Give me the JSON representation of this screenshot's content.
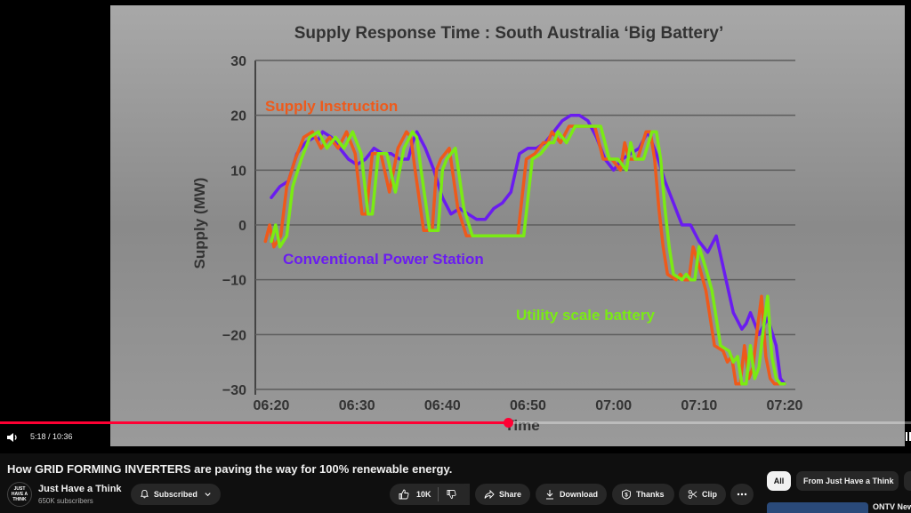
{
  "chart_data": {
    "type": "line",
    "title": "Supply Response Time : South Australia ‘Big Battery’",
    "xlabel": "Time",
    "ylabel": "Supply (MW)",
    "ylim": [
      -30,
      30
    ],
    "yticks": [
      "30",
      "20",
      "10",
      "0",
      "−10",
      "−20",
      "−30"
    ],
    "xticks": [
      "06:20",
      "06:30",
      "06:40",
      "06:50",
      "07:00",
      "07:10",
      "07:20"
    ],
    "grid": true,
    "colors": {
      "background": "#8e8e8e",
      "grid": "#5c5c5c",
      "text": "#333333"
    },
    "series": [
      {
        "name": "Supply Instruction",
        "color": "#ee5a1b",
        "width": 3.5,
        "x": [
          0,
          0.5,
          1,
          1.8,
          2.5,
          3.5,
          4.5,
          5.5,
          6.5,
          7.5,
          8.5,
          9.5,
          10.5,
          11.3,
          11.8,
          12.5,
          13.5,
          14.5,
          15.5,
          16.5,
          17,
          17.5,
          18.5,
          19.5,
          20,
          20.5,
          21.5,
          22.5,
          23.5,
          24.5,
          25.5,
          26.5,
          27,
          27.5,
          28.5,
          29.5,
          30.5,
          31.5,
          32.5,
          33,
          33.5,
          34.5,
          35.5,
          36.5,
          37.5,
          38.5,
          39.5,
          40.5,
          41.5,
          42,
          42.5,
          43.5,
          44.5,
          45,
          45.5,
          46,
          46.5,
          47,
          48,
          48.5,
          49,
          49.5,
          50,
          50.8,
          51.5,
          52.5,
          53.5,
          54,
          54.5,
          55,
          55.5,
          56,
          56.5,
          57,
          57.5,
          58,
          58.5,
          59,
          59.5,
          60
        ],
        "y": [
          -3,
          0,
          -4,
          -2,
          7,
          12,
          16,
          17,
          14,
          16,
          14,
          17,
          13,
          2,
          2,
          13,
          13,
          6,
          14,
          17,
          16,
          10,
          -1,
          -1,
          10,
          12,
          14,
          3,
          -2,
          -2,
          -2,
          -2,
          -2,
          -2,
          -2,
          -2,
          12,
          13,
          15,
          15,
          17,
          15,
          18,
          18,
          18,
          18,
          12,
          12,
          10,
          15,
          12,
          12,
          17,
          17,
          12,
          3,
          -4,
          -9,
          -10,
          -9,
          -10,
          -10,
          -4,
          -8,
          -12,
          -22,
          -23,
          -25,
          -24,
          -29,
          -29,
          -22,
          -28,
          -26,
          -19,
          -13,
          -24,
          -28,
          -29,
          -29
        ],
        "dx": -0.7
      },
      {
        "name": "Conventional Power Station",
        "color": "#6a1cf0",
        "width": 3.5,
        "x": [
          0,
          1,
          2,
          3,
          4,
          5,
          5.5,
          6,
          7,
          8,
          9,
          10,
          11,
          12,
          13,
          14,
          15,
          16,
          16.5,
          17,
          18,
          19,
          20,
          21,
          22,
          23,
          24,
          25,
          26,
          27,
          28,
          29,
          30,
          31,
          32,
          33,
          34,
          35,
          36,
          37,
          38,
          39,
          40,
          41,
          42,
          43,
          44,
          45,
          46,
          47,
          48,
          49,
          50,
          51,
          52,
          53,
          54,
          55,
          55.5,
          56,
          57,
          58,
          59,
          59.5,
          60
        ],
        "y": [
          5,
          7,
          8,
          13,
          15,
          16,
          15.5,
          17,
          16,
          14,
          12,
          11,
          12,
          14,
          13,
          13,
          12,
          12,
          15,
          17,
          14,
          10,
          5,
          2,
          3,
          2,
          1,
          1,
          3,
          4,
          6,
          13,
          14,
          14,
          15,
          17,
          19,
          20,
          20,
          19,
          16,
          12,
          10,
          12,
          13,
          14,
          17,
          13,
          8,
          4,
          0,
          0,
          -3,
          -5,
          -2,
          -9,
          -16,
          -19,
          -18,
          -16,
          -20,
          -17,
          -22,
          -28,
          -29
        ],
        "dx": 0
      },
      {
        "name": "Utility scale battery",
        "color": "#7aeb14",
        "width": 3.5,
        "x": [
          0,
          0.5,
          1,
          1.8,
          2.5,
          3.5,
          4.5,
          5.5,
          6.5,
          7.5,
          8.5,
          9.5,
          10.5,
          11.3,
          11.8,
          12.5,
          13.5,
          14.5,
          15.5,
          16.5,
          17,
          17.5,
          18.5,
          19.5,
          20,
          20.5,
          21.5,
          22.5,
          23.5,
          24.5,
          25.5,
          26.5,
          27,
          27.5,
          28.5,
          29.5,
          30.5,
          31.5,
          32.5,
          33,
          33.5,
          34.5,
          35.5,
          36.5,
          37.5,
          38.5,
          39.5,
          40.5,
          41.5,
          42,
          42.5,
          43.5,
          44.5,
          45,
          45.5,
          46,
          46.5,
          47,
          48,
          48.5,
          49,
          49.5,
          50,
          50.8,
          51.5,
          52.5,
          53.5,
          54,
          54.5,
          55,
          55.5,
          56,
          56.5,
          57,
          57.5,
          58,
          58.5,
          59,
          59.5,
          60
        ],
        "y": [
          -3,
          0,
          -4,
          -2,
          7,
          12,
          16,
          17,
          14,
          16,
          14,
          17,
          13,
          2,
          2,
          13,
          13,
          6,
          14,
          17,
          16,
          10,
          -1,
          -1,
          10,
          12,
          14,
          3,
          -2,
          -2,
          -2,
          -2,
          -2,
          -2,
          -2,
          -2,
          12,
          13,
          15,
          15,
          17,
          15,
          18,
          18,
          18,
          18,
          12,
          12,
          10,
          15,
          12,
          12,
          17,
          17,
          12,
          3,
          -4,
          -9,
          -10,
          -9,
          -10,
          -10,
          -4,
          -8,
          -12,
          -22,
          -23,
          -25,
          -24,
          -29,
          -29,
          -22,
          -28,
          -26,
          -19,
          -13,
          -24,
          -28,
          -29,
          -29
        ],
        "dx": 0
      }
    ],
    "annotations": [
      {
        "text": "Supply Instruction",
        "color": "#ee5a1b"
      },
      {
        "text": "Conventional Power Station",
        "color": "#6a1cf0"
      },
      {
        "text": "Utility scale battery",
        "color": "#7aeb14"
      }
    ]
  },
  "player": {
    "time_display": "5:18 / 10:36",
    "progress_fraction": 0.558
  },
  "video": {
    "title": "How GRID FORMING INVERTERS are paving the way for 100% renewable energy."
  },
  "channel": {
    "avatar_text": "JUST HAVE A THINK",
    "name": "Just Have a Think",
    "subscribers": "650K subscribers",
    "subscribe_label": "Subscribed"
  },
  "actions": {
    "like_count": "10K",
    "share": "Share",
    "download": "Download",
    "thanks": "Thanks",
    "clip": "Clip"
  },
  "filters": {
    "all": "All",
    "from_channel": "From Just Have a Think"
  },
  "recommended": {
    "title_partial": "ONTV New"
  }
}
